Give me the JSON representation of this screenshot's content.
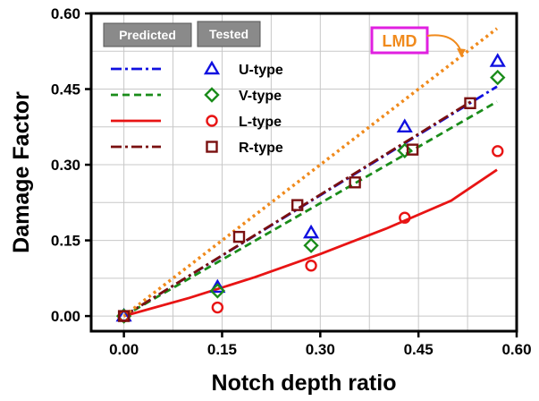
{
  "chart_data": {
    "type": "line",
    "xlabel": "Notch depth ratio",
    "ylabel": "Damage Factor",
    "xlim": [
      -0.05,
      0.6
    ],
    "ylim": [
      -0.03,
      0.6
    ],
    "xticks": [
      "0.00",
      "0.15",
      "0.30",
      "0.45",
      "0.60"
    ],
    "xtick_values": [
      0,
      0.15,
      0.3,
      0.45,
      0.6
    ],
    "yticks": [
      "0.00",
      "0.15",
      "0.30",
      "0.45",
      "0.60"
    ],
    "ytick_values": [
      0,
      0.15,
      0.3,
      0.45,
      0.6
    ],
    "grid": true,
    "legend_placement": "top-left",
    "legend_headers": [
      "Predicted",
      "Tested"
    ],
    "annotation": {
      "text": "LMD",
      "color": "#f08a1c",
      "border_color": "#e020e0"
    },
    "series": [
      {
        "name": "U-type",
        "color": "#1010e0",
        "line_style": "dash-dot",
        "marker": "triangle",
        "predicted": {
          "x": [
            0,
            0.57
          ],
          "y": [
            0,
            0.455
          ]
        },
        "tested": {
          "x": [
            0,
            0.143,
            0.286,
            0.429,
            0.571
          ],
          "y": [
            0,
            0.057,
            0.165,
            0.375,
            0.505
          ]
        }
      },
      {
        "name": "V-type",
        "color": "#1a8c1a",
        "line_style": "dash",
        "marker": "diamond",
        "predicted": {
          "x": [
            0,
            0.57
          ],
          "y": [
            0,
            0.425
          ]
        },
        "tested": {
          "x": [
            0,
            0.143,
            0.286,
            0.429,
            0.571
          ],
          "y": [
            0,
            0.05,
            0.14,
            0.328,
            0.473
          ]
        }
      },
      {
        "name": "L-type",
        "color": "#e81414",
        "line_style": "solid",
        "marker": "circle",
        "predicted": {
          "x": [
            0,
            0.1,
            0.2,
            0.3,
            0.4,
            0.5,
            0.57
          ],
          "y": [
            0,
            0.036,
            0.077,
            0.123,
            0.173,
            0.229,
            0.29
          ]
        },
        "tested": {
          "x": [
            0,
            0.143,
            0.286,
            0.429,
            0.571
          ],
          "y": [
            0,
            0.017,
            0.1,
            0.195,
            0.327
          ]
        }
      },
      {
        "name": "R-type",
        "color": "#7a1010",
        "line_style": "dash-dot",
        "marker": "square",
        "predicted": {
          "x": [
            0,
            0.53
          ],
          "y": [
            0,
            0.425
          ]
        },
        "tested": {
          "x": [
            0,
            0.176,
            0.265,
            0.353,
            0.441,
            0.529
          ],
          "y": [
            0,
            0.157,
            0.22,
            0.265,
            0.33,
            0.422
          ]
        }
      },
      {
        "name": "LMD",
        "color": "#f08a1c",
        "line_style": "dot",
        "marker": "none",
        "predicted": {
          "x": [
            0,
            0.57
          ],
          "y": [
            0,
            0.57
          ]
        },
        "tested": {
          "x": [],
          "y": []
        }
      }
    ]
  }
}
